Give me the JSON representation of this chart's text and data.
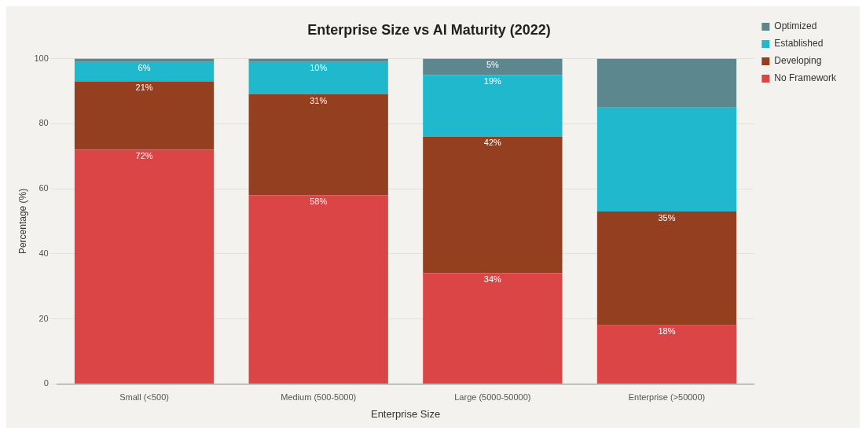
{
  "chart_data": {
    "type": "bar",
    "title": "Enterprise Size vs AI Maturity (2022)",
    "xlabel": "Enterprise Size",
    "ylabel": "Percentage (%)",
    "categories": [
      "Small (<500)",
      "Medium (500-5000)",
      "Large (5000-50000)",
      "Enterprise (>50000)"
    ],
    "stacked": true,
    "series": [
      {
        "name": "No Framework",
        "color": "#db4545",
        "values": [
          72,
          58,
          34,
          18
        ],
        "value_labels": [
          "72%",
          "58%",
          "34%",
          "18%"
        ]
      },
      {
        "name": "Developing",
        "color": "#944020",
        "values": [
          21,
          31,
          42,
          35
        ],
        "value_labels": [
          "21%",
          "31%",
          "42%",
          "35%"
        ]
      },
      {
        "name": "Established",
        "color": "#1fb8cd",
        "values": [
          6,
          10,
          19,
          32
        ],
        "value_labels": [
          "6%",
          "10%",
          "19%",
          null
        ]
      },
      {
        "name": "Optimized",
        "color": "#5d878f",
        "values": [
          1,
          1,
          5,
          15
        ],
        "value_labels": [
          null,
          null,
          "5%",
          null
        ]
      }
    ],
    "ylim": [
      0,
      100
    ],
    "yticks": [
      0,
      20,
      40,
      60,
      80,
      100
    ],
    "grid": "y",
    "legend": "top right"
  }
}
